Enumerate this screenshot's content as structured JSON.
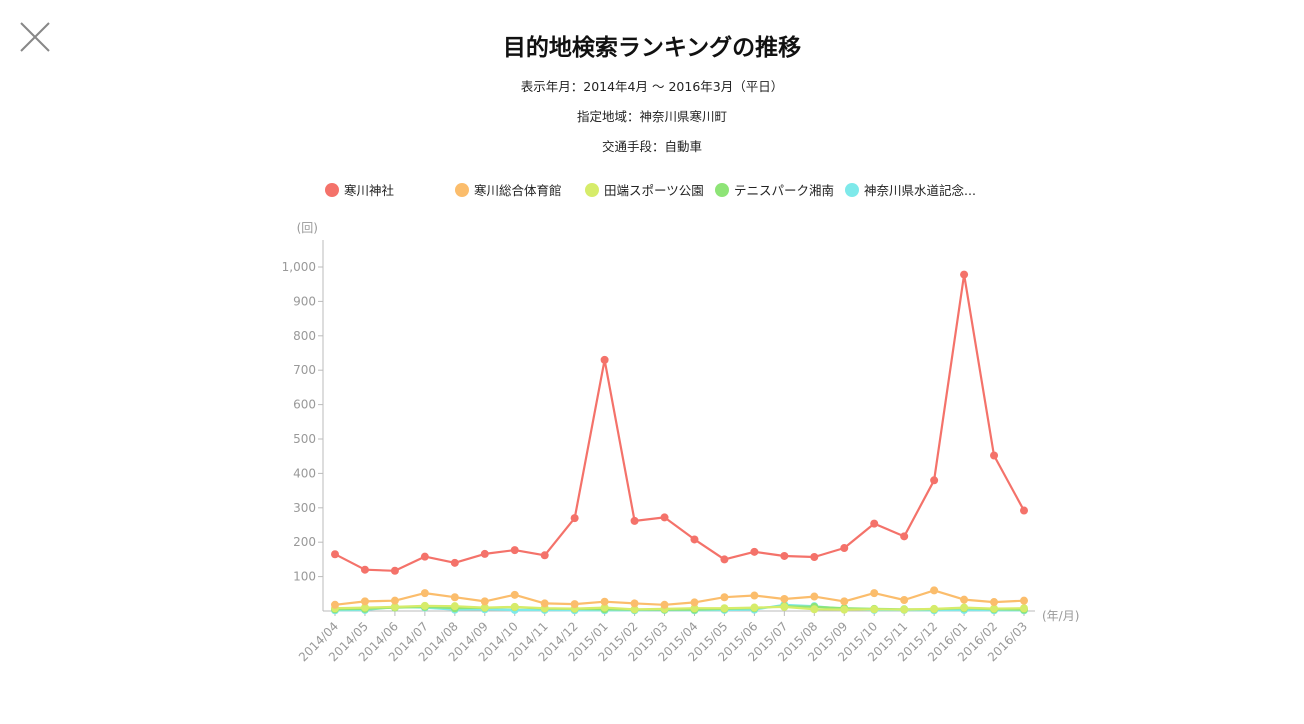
{
  "page": {
    "title": "目的地検索ランキングの推移",
    "period": "表示年月：2014年4月 ～ 2016年3月（平日）",
    "area": "指定地域：神奈川県寒川町",
    "transport": "交通手段：自動車",
    "close_icon": "close-icon"
  },
  "legend": [
    {
      "label": "寒川神社",
      "color": "#f4726a"
    },
    {
      "label": "寒川総合体育館",
      "color": "#fbbd6c"
    },
    {
      "label": "田端スポーツ公園",
      "color": "#d6ec6a"
    },
    {
      "label": "テニスパーク湘南",
      "color": "#8ee477"
    },
    {
      "label": "神奈川県水道記念...",
      "color": "#7ee9ea"
    }
  ],
  "chart_data": {
    "type": "line",
    "y_unit": "(回)",
    "x_unit": "(年/月)",
    "ylim": [
      0,
      1000
    ],
    "yticks": [
      100,
      200,
      300,
      400,
      500,
      600,
      700,
      800,
      900,
      1000
    ],
    "ytick_labels": [
      "100",
      "200",
      "300",
      "400",
      "500",
      "600",
      "700",
      "800",
      "900",
      "1,000"
    ],
    "grid": false,
    "legend_position": "top",
    "categories": [
      "2014/04",
      "2014/05",
      "2014/06",
      "2014/07",
      "2014/08",
      "2014/09",
      "2014/10",
      "2014/11",
      "2014/12",
      "2015/01",
      "2015/02",
      "2015/03",
      "2015/04",
      "2015/05",
      "2015/06",
      "2015/07",
      "2015/08",
      "2015/09",
      "2015/10",
      "2015/11",
      "2015/12",
      "2016/01",
      "2016/02",
      "2016/03"
    ],
    "series": [
      {
        "name": "寒川神社",
        "color": "#f4726a",
        "values": [
          165,
          120,
          117,
          158,
          140,
          166,
          177,
          162,
          270,
          730,
          262,
          272,
          208,
          150,
          172,
          160,
          157,
          183,
          254,
          217,
          380,
          978,
          452,
          292
        ]
      },
      {
        "name": "寒川総合体育館",
        "color": "#fbbd6c",
        "values": [
          18,
          28,
          30,
          52,
          40,
          28,
          47,
          22,
          20,
          27,
          22,
          18,
          25,
          40,
          45,
          35,
          42,
          28,
          52,
          32,
          60,
          33,
          26,
          30
        ]
      },
      {
        "name": "田端スポーツ公園",
        "color": "#d6ec6a",
        "values": [
          8,
          10,
          12,
          15,
          14,
          10,
          12,
          8,
          7,
          10,
          5,
          6,
          8,
          8,
          10,
          12,
          5,
          4,
          5,
          4,
          6,
          10,
          7,
          8
        ]
      },
      {
        "name": "テニスパーク湘南",
        "color": "#8ee477",
        "values": [
          5,
          6,
          10,
          12,
          8,
          9,
          11,
          7,
          6,
          5,
          4,
          4,
          4,
          6,
          8,
          14,
          12,
          8,
          6,
          5,
          5,
          8,
          5,
          4
        ]
      },
      {
        "name": "神奈川県水道記念...",
        "color": "#7ee9ea",
        "values": [
          2,
          3,
          12,
          10,
          4,
          5,
          3,
          3,
          2,
          2,
          2,
          3,
          2,
          3,
          4,
          18,
          14,
          6,
          3,
          3,
          2,
          3,
          2,
          2
        ]
      }
    ]
  }
}
